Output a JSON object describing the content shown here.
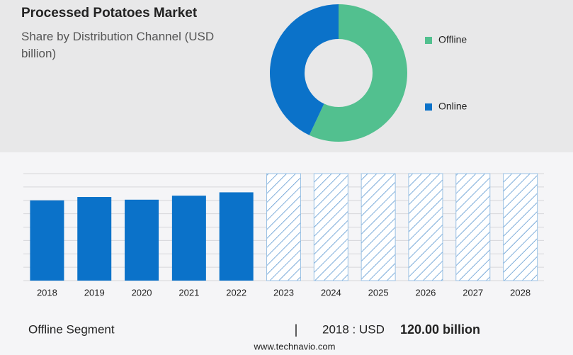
{
  "chart_data": [
    {
      "type": "pie",
      "title": "Processed Potatoes Market",
      "subtitle": "Share by Distribution Channel (USD billion)",
      "categories": [
        "Offline",
        "Online"
      ],
      "values": [
        57,
        43
      ],
      "colors": [
        "#52c08f",
        "#0b72c9"
      ],
      "donut": true
    },
    {
      "type": "bar",
      "categories": [
        "2018",
        "2019",
        "2020",
        "2021",
        "2022",
        "2023",
        "2024",
        "2025",
        "2026",
        "2027",
        "2028"
      ],
      "values": [
        120,
        125,
        121,
        127,
        132,
        null,
        null,
        null,
        null,
        null,
        null
      ],
      "color": "#0b72c9",
      "ylim": [
        0,
        160
      ],
      "yticks": [
        0,
        20,
        40,
        60,
        80,
        100,
        120,
        140,
        160
      ],
      "grid": true
    }
  ],
  "footer": {
    "segment": "Offline Segment",
    "year_label": "2018 : USD",
    "value_label": "120.00 billion",
    "source": "www.technavio.com"
  }
}
